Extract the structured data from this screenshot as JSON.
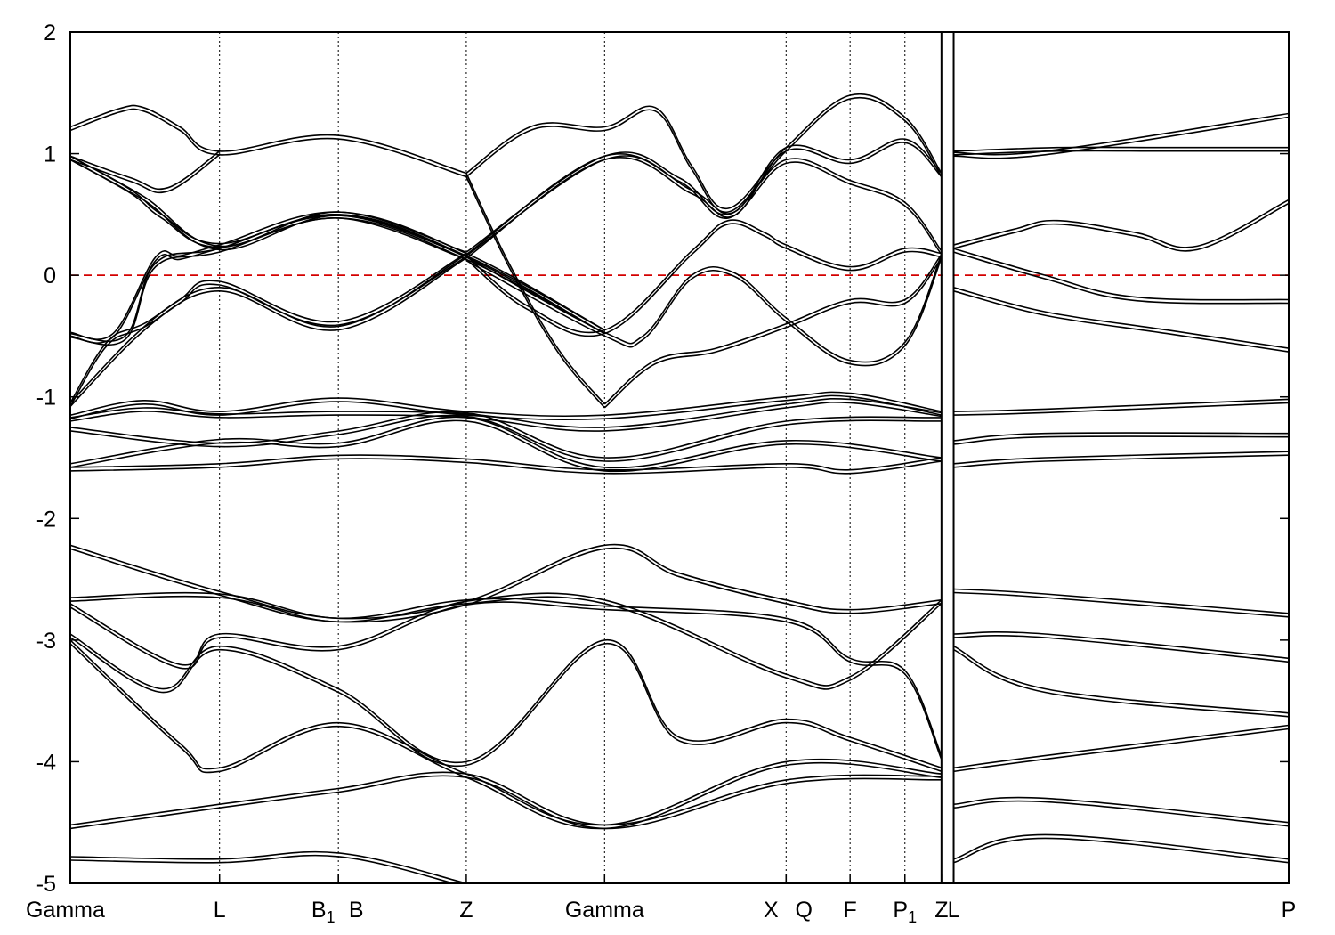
{
  "chart_data": {
    "type": "line",
    "title": "",
    "xlabel": "",
    "ylabel": "",
    "ylim": [
      -5,
      2
    ],
    "y_ticks": [
      2,
      1,
      0,
      -1,
      -2,
      -3,
      -4,
      -5
    ],
    "y_tick_labels": [
      "2",
      "1",
      "0",
      "-1",
      "-2",
      "-3",
      "-4",
      "-5"
    ],
    "fermi_level": 0,
    "fermi_color": "#d40000",
    "line_color": "#000000",
    "grid": false,
    "legend": "none",
    "path_segments": [
      [
        0,
        1.43
      ],
      [
        1.45,
        2.0
      ]
    ],
    "kpoints": [
      {
        "label": "Gamma",
        "sub": "",
        "x": 0.0
      },
      {
        "label": "L",
        "sub": "",
        "x": 0.245
      },
      {
        "label": "B",
        "sub": "1",
        "x": 0.44
      },
      {
        "label": "B",
        "sub": "",
        "x": 0.44
      },
      {
        "label": "Z",
        "sub": "",
        "x": 0.65
      },
      {
        "label": "Gamma",
        "sub": "",
        "x": 0.877
      },
      {
        "label": "X",
        "sub": "",
        "x": 1.175
      },
      {
        "label": "Q",
        "sub": "",
        "x": 1.175
      },
      {
        "label": "F",
        "sub": "",
        "x": 1.28
      },
      {
        "label": "P",
        "sub": "1",
        "x": 1.37
      },
      {
        "label": "Z",
        "sub": "",
        "x": 1.43
      },
      {
        "label": "L",
        "sub": "",
        "x": 1.45
      },
      {
        "label": "P",
        "sub": "",
        "x": 2.0
      }
    ],
    "series": [
      {
        "x": [
          0.0,
          0.08,
          0.12,
          0.18,
          0.245,
          0.44,
          0.65
        ],
        "y": [
          1.22,
          1.37,
          1.38,
          1.22,
          1.02,
          1.15,
          0.84
        ]
      },
      {
        "x": [
          0.0,
          0.1,
          0.16,
          0.245
        ],
        "y": [
          0.98,
          0.8,
          0.72,
          1.02
        ]
      },
      {
        "x": [
          0.0,
          0.12,
          0.245,
          0.44,
          0.65
        ],
        "y": [
          0.98,
          0.65,
          0.24,
          0.52,
          0.19
        ]
      },
      {
        "x": [
          0.0,
          0.1,
          0.15,
          0.245,
          0.44,
          0.65
        ],
        "y": [
          0.98,
          0.7,
          0.5,
          0.26,
          0.5,
          0.16
        ]
      },
      {
        "x": [
          0.0,
          0.07,
          0.14,
          0.18,
          0.245,
          0.44,
          0.65,
          0.877
        ],
        "y": [
          -0.47,
          -0.48,
          0.15,
          0.16,
          0.25,
          0.52,
          0.18,
          -0.45
        ]
      },
      {
        "x": [
          0.0,
          0.09,
          0.14,
          0.245,
          0.44,
          0.65,
          0.877
        ],
        "y": [
          -0.48,
          -0.5,
          0.1,
          0.22,
          0.5,
          0.16,
          -0.45
        ]
      },
      {
        "x": [
          0.0,
          0.06,
          0.12,
          0.245,
          0.44,
          0.65
        ],
        "y": [
          -1.05,
          -0.55,
          -0.4,
          -0.1,
          -0.42,
          0.17
        ]
      },
      {
        "x": [
          0.0,
          0.1,
          0.18,
          0.245,
          0.44,
          0.65
        ],
        "y": [
          -1.05,
          -0.52,
          -0.2,
          -0.05,
          -0.38,
          0.18
        ]
      },
      {
        "x": [
          0.65,
          0.76,
          0.877,
          0.96,
          1.02,
          1.08,
          1.175,
          1.28,
          1.37,
          1.43
        ],
        "y": [
          0.84,
          1.23,
          1.22,
          1.38,
          0.9,
          0.55,
          1.05,
          1.48,
          1.3,
          0.84
        ]
      },
      {
        "x": [
          0.65,
          0.72,
          0.8,
          0.877
        ],
        "y": [
          0.84,
          0.1,
          -0.6,
          -1.06
        ]
      },
      {
        "x": [
          0.877,
          0.96,
          1.06,
          1.175,
          1.28,
          1.37,
          1.43
        ],
        "y": [
          -1.06,
          -0.7,
          -0.6,
          -0.4,
          -0.2,
          -0.2,
          0.17
        ]
      },
      {
        "x": [
          0.65,
          0.877,
          1.02,
          1.09,
          1.175,
          1.28,
          1.37,
          1.43
        ],
        "y": [
          0.17,
          0.98,
          0.7,
          0.52,
          1.05,
          0.95,
          1.12,
          0.84
        ]
      },
      {
        "x": [
          0.65,
          0.877,
          1.0,
          1.08,
          1.175,
          1.28,
          1.37,
          1.43
        ],
        "y": [
          0.19,
          0.98,
          0.8,
          0.5,
          0.95,
          0.78,
          0.6,
          0.2
        ]
      },
      {
        "x": [
          0.65,
          0.75,
          0.877,
          1.02,
          1.08,
          1.14,
          1.175,
          1.28,
          1.37,
          1.43
        ],
        "y": [
          0.16,
          -0.25,
          -0.45,
          0.2,
          0.45,
          0.35,
          0.25,
          0.07,
          0.22,
          0.18
        ]
      },
      {
        "x": [
          0.65,
          0.877,
          0.94,
          1.02,
          1.09,
          1.175,
          1.28,
          1.37,
          1.43
        ],
        "y": [
          0.15,
          -0.47,
          -0.5,
          0.0,
          0.02,
          -0.35,
          -0.7,
          -0.55,
          0.17
        ]
      },
      {
        "x": [
          1.45,
          1.55,
          1.62,
          1.75,
          1.85,
          2.0
        ],
        "y": [
          0.25,
          0.38,
          0.45,
          0.35,
          0.24,
          0.62
        ]
      },
      {
        "x": [
          1.45,
          1.6,
          1.75,
          2.0
        ],
        "y": [
          0.22,
          0.0,
          -0.18,
          -0.2
        ]
      },
      {
        "x": [
          1.45,
          1.6,
          1.8,
          2.0
        ],
        "y": [
          -0.1,
          -0.3,
          -0.45,
          -0.6
        ]
      },
      {
        "x": [
          1.45,
          1.6,
          2.0
        ],
        "y": [
          1.01,
          1.02,
          1.33
        ]
      },
      {
        "x": [
          1.45,
          1.62,
          1.8,
          2.0
        ],
        "y": [
          1.02,
          1.05,
          1.05,
          1.05
        ]
      },
      {
        "x": [
          0.0,
          0.12,
          0.245,
          0.44,
          0.65,
          0.877,
          1.175,
          1.28,
          1.43
        ],
        "y": [
          -1.15,
          -1.03,
          -1.12,
          -1.01,
          -1.12,
          -1.15,
          -1.0,
          -0.97,
          -1.12
        ]
      },
      {
        "x": [
          0.0,
          0.12,
          0.245,
          0.44,
          0.65,
          0.877,
          1.175,
          1.28,
          1.43
        ],
        "y": [
          -1.17,
          -1.09,
          -1.14,
          -1.12,
          -1.14,
          -1.25,
          -1.06,
          -1.02,
          -1.13
        ]
      },
      {
        "x": [
          0.0,
          0.245,
          0.44,
          0.65,
          0.877,
          1.175,
          1.43
        ],
        "y": [
          -1.25,
          -1.38,
          -1.28,
          -1.13,
          -1.5,
          -1.2,
          -1.17
        ]
      },
      {
        "x": [
          0.0,
          0.245,
          0.44,
          0.65,
          0.877,
          1.175,
          1.43
        ],
        "y": [
          -1.55,
          -1.35,
          -1.38,
          -1.17,
          -1.58,
          -1.36,
          -1.5
        ]
      },
      {
        "x": [
          0.0,
          0.245,
          0.44,
          0.65,
          0.877,
          1.175,
          1.28,
          1.43
        ],
        "y": [
          -1.58,
          -1.55,
          -1.48,
          -1.51,
          -1.6,
          -1.55,
          -1.6,
          -1.5
        ]
      },
      {
        "x": [
          1.45,
          1.6,
          2.0
        ],
        "y": [
          -1.12,
          -1.1,
          -1.02
        ]
      },
      {
        "x": [
          1.45,
          1.6,
          2.0
        ],
        "y": [
          -1.36,
          -1.3,
          -1.3
        ]
      },
      {
        "x": [
          1.45,
          1.6,
          2.0
        ],
        "y": [
          -1.55,
          -1.5,
          -1.45
        ]
      },
      {
        "x": [
          0.0,
          0.245,
          0.44,
          0.65,
          0.877,
          1.0,
          1.175,
          1.28,
          1.43
        ],
        "y": [
          -2.22,
          -2.6,
          -2.82,
          -2.68,
          -2.22,
          -2.45,
          -2.67,
          -2.75,
          -2.67
        ]
      },
      {
        "x": [
          0.0,
          0.245,
          0.44,
          0.65,
          0.877,
          1.175,
          1.28,
          1.43
        ],
        "y": [
          -2.65,
          -2.62,
          -2.82,
          -2.67,
          -2.67,
          -3.28,
          -3.3,
          -2.67
        ]
      },
      {
        "x": [
          0.0,
          0.18,
          0.245,
          0.44,
          0.65,
          0.877,
          1.175,
          1.28,
          1.37,
          1.43
        ],
        "y": [
          -2.7,
          -3.2,
          -2.95,
          -3.05,
          -2.68,
          -2.72,
          -2.82,
          -3.15,
          -3.25,
          -3.95
        ]
      },
      {
        "x": [
          0.0,
          0.15,
          0.245,
          0.44,
          0.65,
          0.877,
          1.0,
          1.175,
          1.28,
          1.43
        ],
        "y": [
          -2.95,
          -3.4,
          -3.05,
          -3.4,
          -4.0,
          -3.0,
          -3.8,
          -3.65,
          -3.8,
          -4.05
        ]
      },
      {
        "x": [
          0.0,
          0.18,
          0.245,
          0.44,
          0.65,
          0.877,
          1.175,
          1.43
        ],
        "y": [
          -3.0,
          -3.85,
          -4.05,
          -3.68,
          -4.1,
          -4.52,
          -4.0,
          -4.1
        ]
      },
      {
        "x": [
          0.0,
          0.245,
          0.44,
          0.65,
          0.877,
          1.175,
          1.43
        ],
        "y": [
          -4.52,
          -4.35,
          -4.22,
          -4.1,
          -4.52,
          -4.15,
          -4.12
        ]
      },
      {
        "x": [
          0.0,
          0.245,
          0.44,
          0.65
        ],
        "y": [
          -4.78,
          -4.8,
          -4.75,
          -5.0
        ]
      },
      {
        "x": [
          1.45,
          1.6,
          2.0
        ],
        "y": [
          -2.58,
          -2.62,
          -2.78
        ]
      },
      {
        "x": [
          1.45,
          1.6,
          2.0
        ],
        "y": [
          -2.95,
          -2.95,
          -3.15
        ]
      },
      {
        "x": [
          1.45,
          1.6,
          2.0
        ],
        "y": [
          -3.05,
          -3.4,
          -3.6
        ]
      },
      {
        "x": [
          1.45,
          1.6,
          2.0
        ],
        "y": [
          -4.05,
          -3.95,
          -3.7
        ]
      },
      {
        "x": [
          1.45,
          1.6,
          2.0
        ],
        "y": [
          -4.35,
          -4.3,
          -4.5
        ]
      },
      {
        "x": [
          1.45,
          1.6,
          2.0
        ],
        "y": [
          -4.8,
          -4.6,
          -4.8
        ]
      }
    ]
  }
}
